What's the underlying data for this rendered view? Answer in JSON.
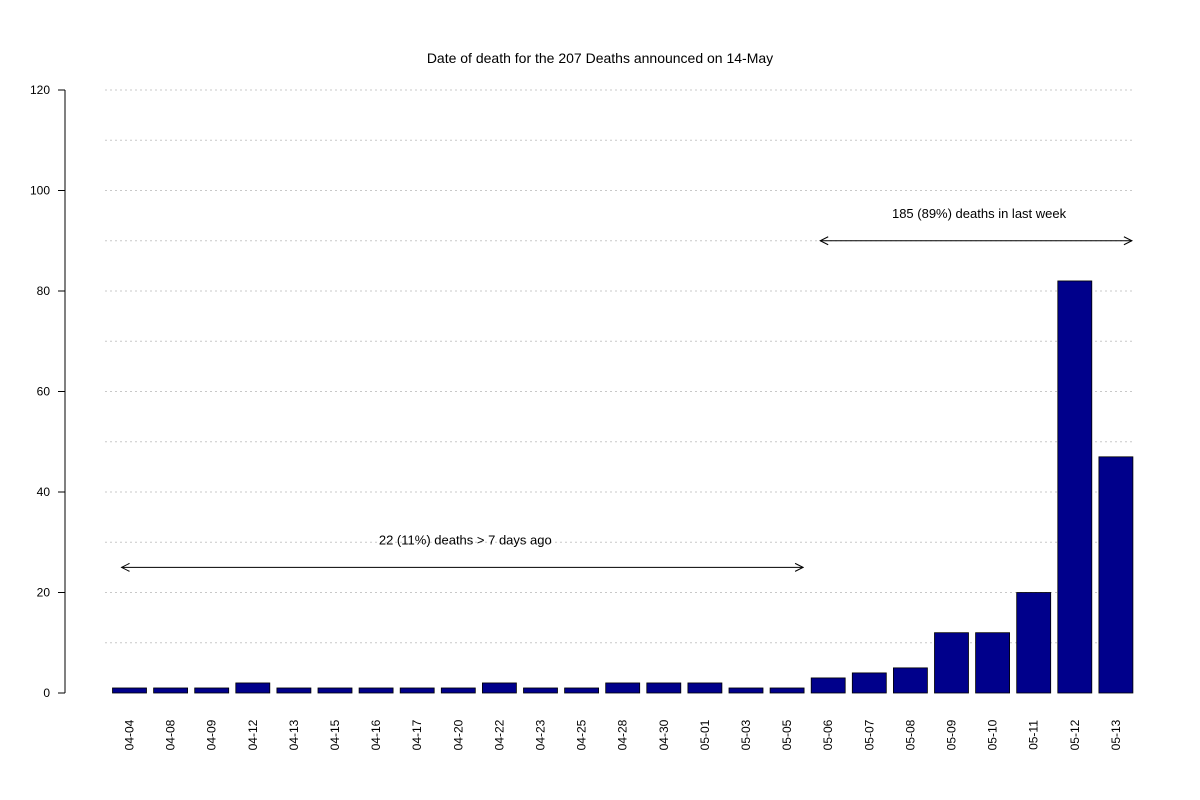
{
  "chart_data": {
    "type": "bar",
    "title": "Date of death for the 207 Deaths announced on 14-May",
    "xlabel": "",
    "ylabel": "",
    "ylim": [
      0,
      120
    ],
    "yticks": [
      0,
      20,
      40,
      60,
      80,
      100,
      120
    ],
    "grid": true,
    "categories": [
      "04-04",
      "04-08",
      "04-09",
      "04-12",
      "04-13",
      "04-15",
      "04-16",
      "04-17",
      "04-20",
      "04-22",
      "04-23",
      "04-25",
      "04-28",
      "04-30",
      "05-01",
      "05-03",
      "05-05",
      "05-06",
      "05-07",
      "05-08",
      "05-09",
      "05-10",
      "05-11",
      "05-12",
      "05-13"
    ],
    "values": [
      1,
      1,
      1,
      2,
      1,
      1,
      1,
      1,
      1,
      2,
      1,
      1,
      2,
      2,
      2,
      1,
      1,
      3,
      4,
      5,
      12,
      12,
      20,
      82,
      47
    ],
    "bar_color": "#00008B",
    "annotations": [
      {
        "text": "22 (11%) deaths > 7 days ago",
        "from": "04-04",
        "to": "05-05",
        "y": 25
      },
      {
        "text": "185 (89%)  deaths in last week",
        "from": "05-06",
        "to": "05-13",
        "y": 90
      }
    ]
  }
}
